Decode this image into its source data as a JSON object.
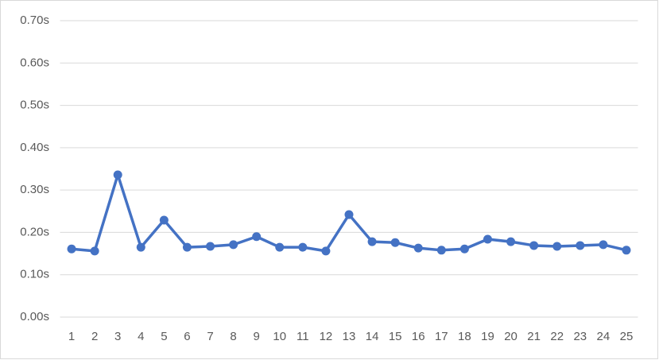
{
  "chart_data": {
    "type": "line",
    "categories": [
      "1",
      "2",
      "3",
      "4",
      "5",
      "6",
      "7",
      "8",
      "9",
      "10",
      "11",
      "12",
      "13",
      "14",
      "15",
      "16",
      "17",
      "18",
      "19",
      "20",
      "21",
      "22",
      "23",
      "24",
      "25"
    ],
    "series": [
      {
        "color": "#4472c4",
        "values": [
          0.161,
          0.156,
          0.336,
          0.165,
          0.229,
          0.165,
          0.167,
          0.171,
          0.19,
          0.165,
          0.165,
          0.156,
          0.242,
          0.178,
          0.176,
          0.163,
          0.158,
          0.161,
          0.184,
          0.178,
          0.169,
          0.167,
          0.169,
          0.171,
          0.158
        ]
      }
    ],
    "ylim": [
      0,
      0.7
    ],
    "yticks": [
      {
        "value": 0,
        "label": "0.00s"
      },
      {
        "value": 0.1,
        "label": "0.10s"
      },
      {
        "value": 0.2,
        "label": "0.20s"
      },
      {
        "value": 0.3,
        "label": "0.30s"
      },
      {
        "value": 0.4,
        "label": "0.40s"
      },
      {
        "value": 0.5,
        "label": "0.50s"
      },
      {
        "value": 0.6,
        "label": "0.60s"
      },
      {
        "value": 0.7,
        "label": "0.70s"
      }
    ],
    "grid": true
  }
}
